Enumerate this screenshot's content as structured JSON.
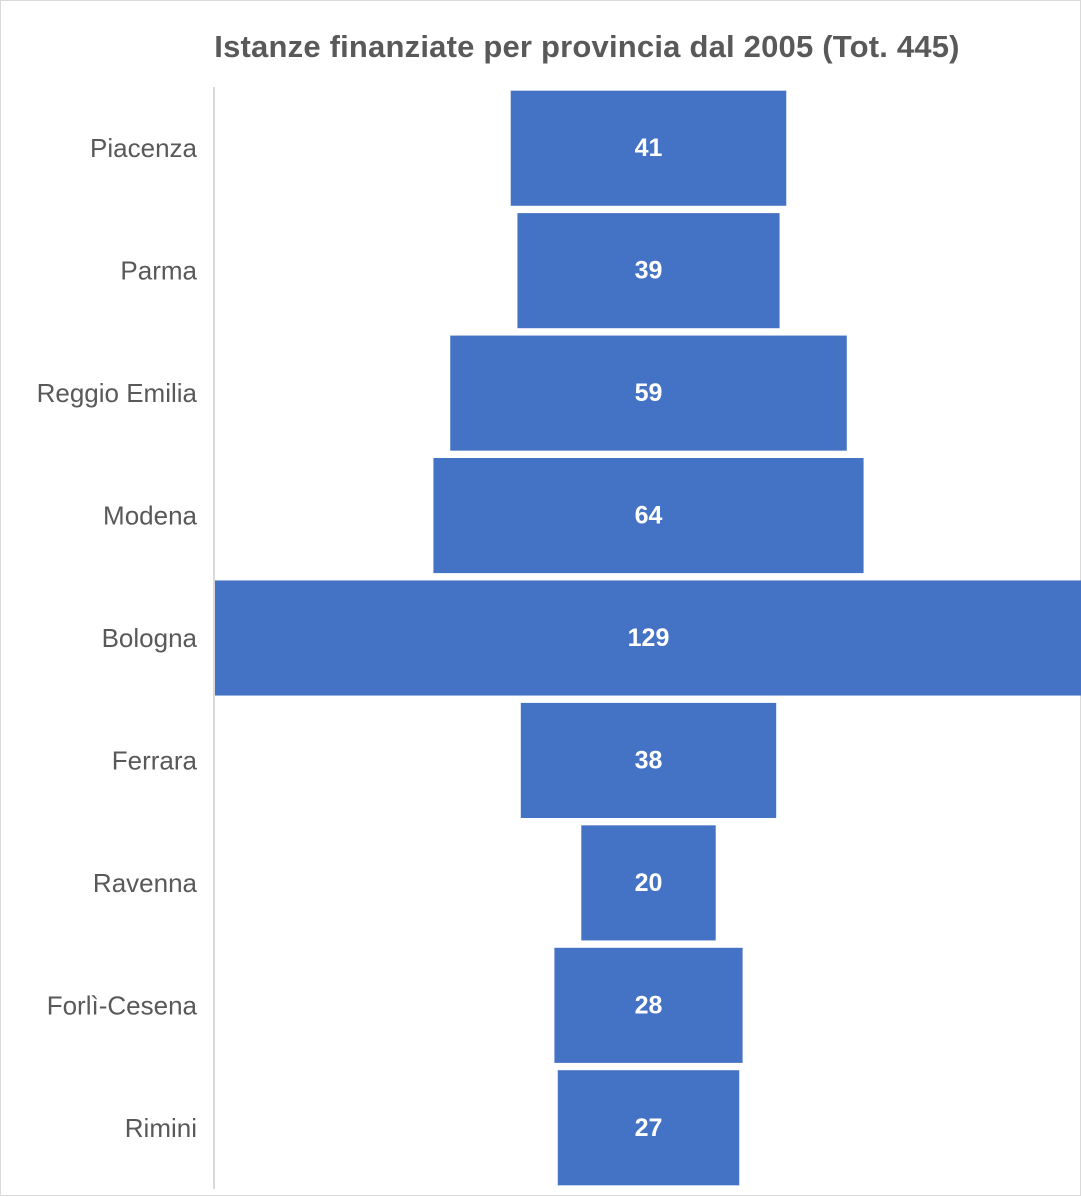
{
  "chart_data": {
    "type": "bar",
    "orientation": "horizontal",
    "layout": "funnel",
    "title": "Istanze finanziate per provincia dal 2005 (Tot. 445)",
    "categories": [
      "Piacenza",
      "Parma",
      "Reggio Emilia",
      "Modena",
      "Bologna",
      "Ferrara",
      "Ravenna",
      "Forlì-Cesena",
      "Rimini"
    ],
    "values": [
      41,
      39,
      59,
      64,
      129,
      38,
      20,
      28,
      27
    ],
    "xlabel": "",
    "ylabel": "",
    "grid": false,
    "legend": "none",
    "bar_color": "#4472c4",
    "label_color": "#ffffff",
    "text_color": "#595959"
  }
}
